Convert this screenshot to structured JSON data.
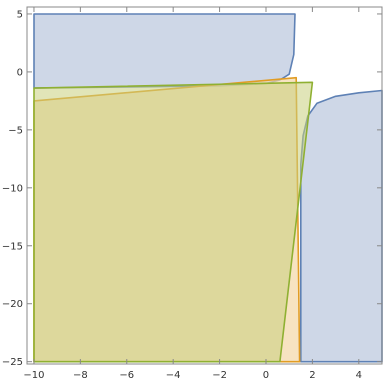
{
  "chart_data": {
    "type": "area",
    "xlim": [
      -10.3,
      5.0
    ],
    "ylim": [
      -25.2,
      5.6
    ],
    "grid": false,
    "legend": "none",
    "x_ticks": [
      -10,
      -8,
      -6,
      -4,
      -2,
      0,
      2,
      4
    ],
    "y_ticks": [
      5,
      0,
      -5,
      -10,
      -15,
      -20,
      -25
    ],
    "x_tick_labels": [
      "−10",
      "−8",
      "−6",
      "−4",
      "−2",
      "0",
      "2",
      "4"
    ],
    "y_tick_labels": [
      "5",
      "0",
      "−5",
      "−10",
      "−15",
      "−20",
      "−25"
    ],
    "series": [
      {
        "color": "#5e81b5",
        "fill": "#c5d0e3",
        "fill_opacity": 0.85,
        "regions": [
          [
            [
              -10,
              5
            ],
            [
              1.25,
              5
            ],
            [
              1.2,
              1.5
            ],
            [
              1.0,
              -0.2
            ],
            [
              0.6,
              -0.7
            ],
            [
              0.0,
              -1.0
            ],
            [
              -2.0,
              -1.2
            ],
            [
              -6.0,
              -1.3
            ],
            [
              -10,
              -1.4
            ]
          ],
          [
            [
              1.5,
              -25
            ],
            [
              1.5,
              -8
            ],
            [
              1.6,
              -5.5
            ],
            [
              1.8,
              -3.8
            ],
            [
              2.2,
              -2.7
            ],
            [
              3.0,
              -2.1
            ],
            [
              4.0,
              -1.8
            ],
            [
              5.0,
              -1.6
            ],
            [
              5.0,
              -25
            ]
          ]
        ]
      },
      {
        "color": "#e19c24",
        "fill": "#f3d7a6",
        "fill_opacity": 0.7,
        "regions": [
          [
            [
              -10,
              -2.5
            ],
            [
              1.3,
              -0.5
            ],
            [
              1.45,
              -25
            ],
            [
              -10,
              -25
            ]
          ]
        ]
      },
      {
        "color": "#8fb032",
        "fill": "#c8cf7e",
        "fill_opacity": 0.55,
        "regions": [
          [
            [
              -10,
              -1.4
            ],
            [
              2.0,
              -0.9
            ],
            [
              0.6,
              -25
            ],
            [
              -10,
              -25
            ]
          ]
        ]
      }
    ]
  }
}
